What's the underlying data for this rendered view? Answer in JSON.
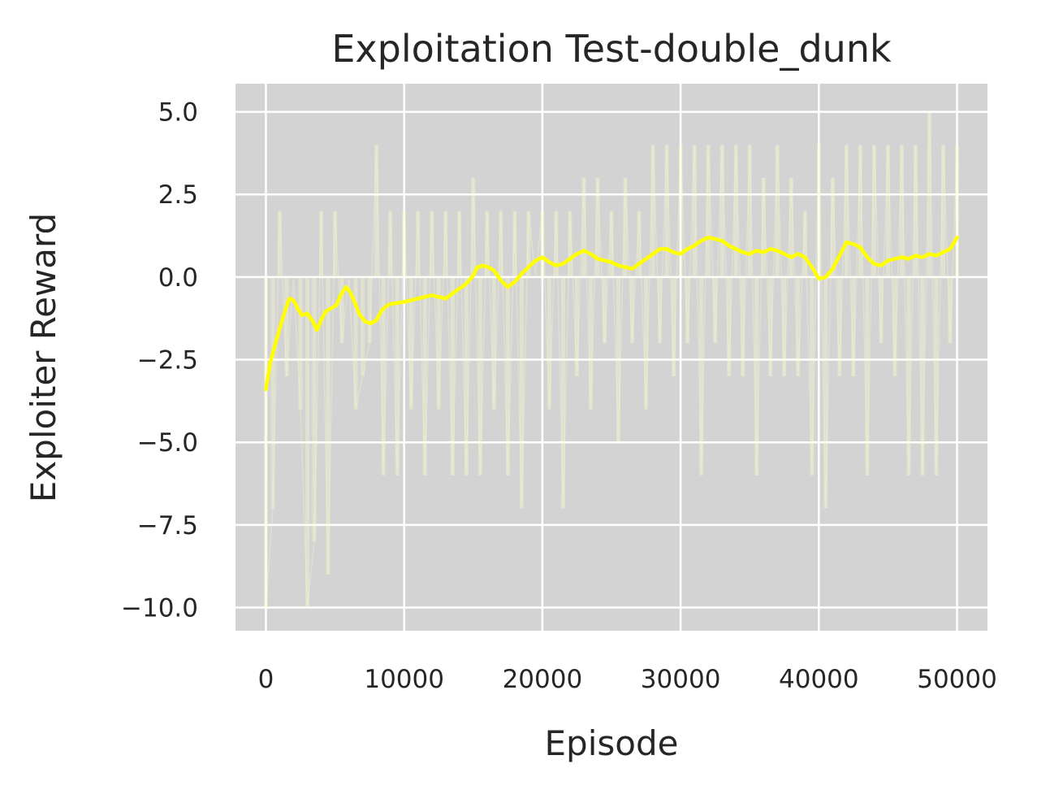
{
  "chart_data": {
    "type": "line",
    "title": "Exploitation Test-double_dunk",
    "xlabel": "Episode",
    "ylabel": "Exploiter Reward",
    "xlim": [
      -2200,
      52200
    ],
    "ylim": [
      -10.7,
      5.85
    ],
    "xticks": [
      0,
      10000,
      20000,
      30000,
      40000,
      50000
    ],
    "yticks": [
      5.0,
      2.5,
      0.0,
      -2.5,
      -5.0,
      -7.5,
      -10.0
    ],
    "ytick_labels": [
      "5.0",
      "2.5",
      "0.0",
      "−2.5",
      "−5.0",
      "−7.5",
      "−10.0"
    ],
    "grid": true,
    "legend": "none",
    "colors": {
      "background": "#d3d3d3",
      "grid": "#ffffff",
      "smoothed_line": "#ffff00",
      "raw_band": "#ffffcc"
    },
    "series": [
      {
        "role": "smoothed",
        "x": [
          0,
          300,
          700,
          1100,
          1400,
          1700,
          2000,
          2300,
          2600,
          3000,
          3400,
          3700,
          4000,
          4300,
          4700,
          5100,
          5400,
          5800,
          6100,
          6500,
          6800,
          7200,
          7600,
          8000,
          8400,
          8800,
          9200,
          9600,
          10000,
          10500,
          11000,
          11500,
          12000,
          12500,
          13000,
          13500,
          14000,
          14500,
          15000,
          15300,
          15700,
          16100,
          16500,
          17000,
          17500,
          18000,
          18500,
          19000,
          19500,
          20000,
          20500,
          21000,
          21500,
          22000,
          22500,
          23000,
          23500,
          24000,
          24500,
          25000,
          25500,
          26000,
          26500,
          27000,
          27500,
          28000,
          28500,
          29000,
          29500,
          30000,
          30500,
          31000,
          31500,
          32000,
          32500,
          33000,
          33500,
          34000,
          34500,
          35000,
          35500,
          36000,
          36500,
          37000,
          37500,
          38000,
          38500,
          39000,
          39500,
          40000,
          40500,
          41000,
          41500,
          42000,
          42500,
          43000,
          43500,
          44000,
          44500,
          45000,
          45500,
          46000,
          46500,
          47000,
          47500,
          48000,
          48500,
          49000,
          49500,
          50000
        ],
        "y": [
          -3.4,
          -2.6,
          -2.0,
          -1.4,
          -1.0,
          -0.65,
          -0.7,
          -0.95,
          -1.15,
          -1.1,
          -1.35,
          -1.6,
          -1.3,
          -1.05,
          -0.95,
          -0.85,
          -0.55,
          -0.3,
          -0.45,
          -0.85,
          -1.15,
          -1.35,
          -1.4,
          -1.3,
          -1.0,
          -0.85,
          -0.8,
          -0.78,
          -0.75,
          -0.7,
          -0.65,
          -0.6,
          -0.55,
          -0.6,
          -0.65,
          -0.5,
          -0.35,
          -0.2,
          0.05,
          0.3,
          0.35,
          0.3,
          0.2,
          -0.1,
          -0.3,
          -0.15,
          0.1,
          0.3,
          0.5,
          0.6,
          0.45,
          0.35,
          0.4,
          0.55,
          0.7,
          0.8,
          0.7,
          0.55,
          0.5,
          0.45,
          0.35,
          0.3,
          0.25,
          0.4,
          0.55,
          0.7,
          0.85,
          0.85,
          0.75,
          0.7,
          0.85,
          0.95,
          1.1,
          1.2,
          1.15,
          1.1,
          0.95,
          0.85,
          0.75,
          0.7,
          0.8,
          0.75,
          0.85,
          0.8,
          0.7,
          0.6,
          0.7,
          0.6,
          0.3,
          -0.05,
          0.0,
          0.25,
          0.65,
          1.05,
          1.0,
          0.9,
          0.6,
          0.4,
          0.35,
          0.5,
          0.55,
          0.6,
          0.55,
          0.65,
          0.6,
          0.7,
          0.65,
          0.75,
          0.85,
          1.2
        ]
      },
      {
        "role": "raw",
        "x": [
          0,
          500,
          1000,
          1500,
          2000,
          2500,
          3000,
          3500,
          4000,
          4500,
          5000,
          5500,
          6000,
          6500,
          7000,
          7500,
          8000,
          8500,
          9000,
          9500,
          10000,
          10500,
          11000,
          11500,
          12000,
          12500,
          13000,
          13500,
          14000,
          14500,
          15000,
          15500,
          16000,
          16500,
          17000,
          17500,
          18000,
          18500,
          19000,
          19500,
          20000,
          20500,
          21000,
          21500,
          22000,
          22500,
          23000,
          23500,
          24000,
          24500,
          25000,
          25500,
          26000,
          26500,
          27000,
          27500,
          28000,
          28500,
          29000,
          29500,
          30000,
          30500,
          31000,
          31500,
          32000,
          32500,
          33000,
          33500,
          34000,
          34500,
          35000,
          35500,
          36000,
          36500,
          37000,
          37500,
          38000,
          38500,
          39000,
          39500,
          40000,
          40500,
          41000,
          41500,
          42000,
          42500,
          43000,
          43500,
          44000,
          44500,
          45000,
          45500,
          46000,
          46500,
          47000,
          47500,
          48000,
          48500,
          49000,
          49500,
          50000
        ],
        "y": [
          -10,
          -7,
          2,
          -3,
          0,
          -4,
          -10,
          -8,
          2,
          -9,
          2,
          -2,
          0,
          -4,
          -3,
          -2,
          4,
          -6,
          2,
          -6,
          2,
          -4,
          2,
          -6,
          2,
          -4,
          2,
          -6,
          2,
          -6,
          3,
          -6,
          2,
          -4,
          2,
          -6,
          2,
          -7,
          2,
          0,
          2,
          -4,
          2,
          -7,
          2,
          -3,
          3,
          -4,
          3,
          -2,
          2,
          -5,
          3,
          -2,
          2,
          -4,
          4,
          -2,
          4,
          -3,
          4,
          -2,
          4,
          -6,
          4,
          -2,
          4,
          -3,
          4,
          -3,
          4,
          -6,
          3,
          -3,
          4,
          -3,
          3,
          -3,
          2,
          -6,
          4,
          -7,
          3,
          -3,
          4,
          -3,
          4,
          -6,
          4,
          -2,
          4,
          -3,
          4,
          -6,
          4,
          -6,
          5,
          -6,
          4,
          -2,
          4
        ]
      }
    ]
  }
}
